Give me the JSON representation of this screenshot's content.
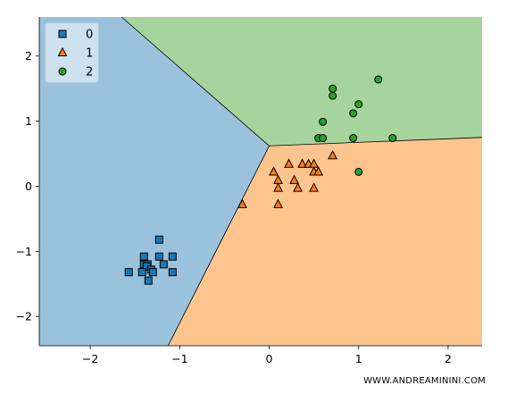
{
  "chart_data": {
    "type": "scatter",
    "title": "",
    "xlabel": "",
    "ylabel": "",
    "xlim": [
      -2.57,
      2.38
    ],
    "ylim": [
      -2.45,
      2.6
    ],
    "xticks": [
      -2,
      -1,
      0,
      1,
      2
    ],
    "yticks": [
      -2,
      -1,
      0,
      1,
      2
    ],
    "xtick_labels": [
      "−2",
      "−1",
      "0",
      "1",
      "2"
    ],
    "ytick_labels": [
      "−2",
      "−1",
      "0",
      "1",
      "2"
    ],
    "grid": false,
    "legend_position": "top-left",
    "decision_regions": [
      {
        "class": "0",
        "color": "#9bc2dd"
      },
      {
        "class": "1",
        "color": "#fec48e"
      },
      {
        "class": "2",
        "color": "#a6d49d"
      }
    ],
    "boundary_vertex": [
      0.0,
      0.62
    ],
    "boundary_rays": [
      {
        "between": [
          "0",
          "2"
        ],
        "to": [
          -1.65,
          2.6
        ]
      },
      {
        "between": [
          "1",
          "2"
        ],
        "to": [
          2.38,
          0.75
        ]
      },
      {
        "between": [
          "0",
          "1"
        ],
        "to": [
          -1.13,
          -2.45
        ]
      }
    ],
    "series": [
      {
        "name": "0",
        "marker": "square",
        "color": "#1f77b4",
        "points": [
          [
            -1.23,
            -0.82
          ],
          [
            -1.4,
            -1.08
          ],
          [
            -1.23,
            -1.08
          ],
          [
            -1.08,
            -1.08
          ],
          [
            -1.4,
            -1.2
          ],
          [
            -1.36,
            -1.2
          ],
          [
            -1.18,
            -1.2
          ],
          [
            -1.37,
            -1.23
          ],
          [
            -1.32,
            -1.28
          ],
          [
            -1.57,
            -1.32
          ],
          [
            -1.42,
            -1.32
          ],
          [
            -1.3,
            -1.32
          ],
          [
            -1.08,
            -1.32
          ],
          [
            -1.35,
            -1.45
          ]
        ]
      },
      {
        "name": "1",
        "marker": "triangle",
        "color": "#ff7f0e",
        "points": [
          [
            0.71,
            0.47
          ],
          [
            0.22,
            0.34
          ],
          [
            0.37,
            0.34
          ],
          [
            0.44,
            0.34
          ],
          [
            0.5,
            0.34
          ],
          [
            0.05,
            0.22
          ],
          [
            0.5,
            0.22
          ],
          [
            0.55,
            0.22
          ],
          [
            0.1,
            0.09
          ],
          [
            0.28,
            0.09
          ],
          [
            0.1,
            -0.03
          ],
          [
            0.32,
            -0.03
          ],
          [
            0.5,
            -0.03
          ],
          [
            -0.3,
            -0.28
          ],
          [
            0.1,
            -0.28
          ]
        ]
      },
      {
        "name": "2",
        "marker": "circle",
        "color": "#2ca02c",
        "points": [
          [
            1.22,
            1.64
          ],
          [
            0.71,
            1.5
          ],
          [
            0.71,
            1.39
          ],
          [
            1.0,
            1.26
          ],
          [
            0.94,
            1.12
          ],
          [
            0.6,
            0.99
          ],
          [
            0.55,
            0.74
          ],
          [
            0.6,
            0.74
          ],
          [
            0.94,
            0.74
          ],
          [
            1.38,
            0.74
          ],
          [
            1.0,
            0.22
          ]
        ]
      }
    ]
  },
  "legend": {
    "items": [
      {
        "label": "0",
        "marker": "square-marker"
      },
      {
        "label": "1",
        "marker": "triangle-marker"
      },
      {
        "label": "2",
        "marker": "circle-marker"
      }
    ]
  },
  "watermark": "WWW.ANDREAMININI.COM"
}
